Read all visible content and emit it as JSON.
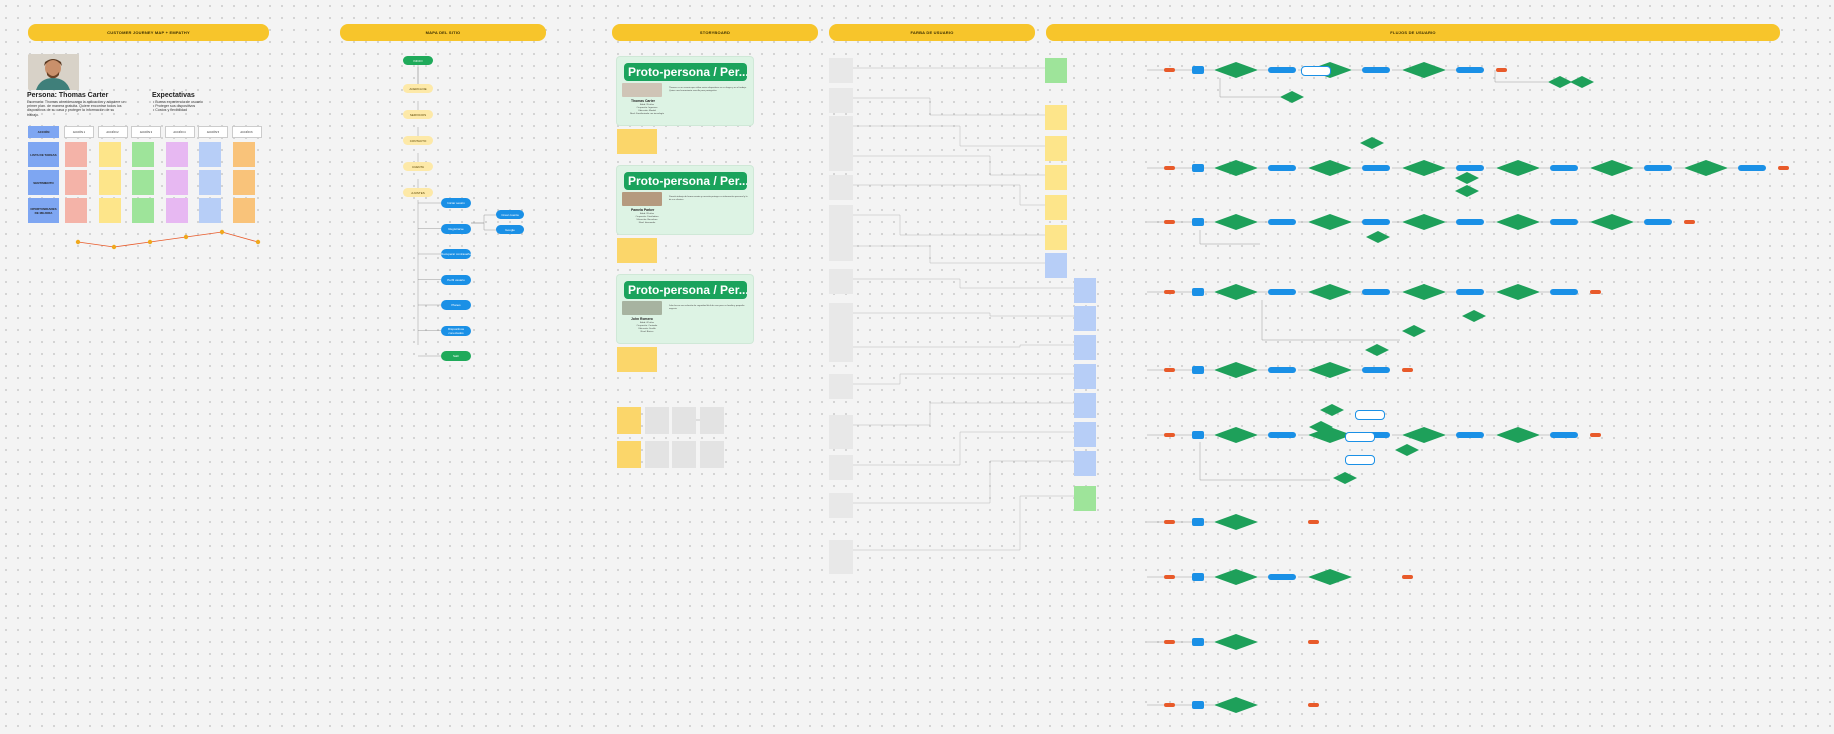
{
  "headers": {
    "journey": "CUSTOMER JOURNEY MAP + EMPATHY",
    "sitemap": "MAPA DEL SITIO",
    "storyboard": "STORYBOARD",
    "user_path": "FARBA DE USUARIO",
    "user_flow": "FLUJOS DE USUARIO"
  },
  "persona": {
    "title": "Persona: Thomas Carter",
    "description": "Escenario: Thomas abre/descarga la aplicación y adquiere un primer plan. de manera gratuita. Quiere encontrar todos los dispositivos de su casa y proteger la información de su trabajo.",
    "expectations_title": "Expectativas",
    "expectations": [
      "Buena experiencia de usuario",
      "Proteger sus dispositivos",
      "Costos y flexibilidad"
    ]
  },
  "journey_grid": {
    "corner": "ACCIÓN",
    "stages": [
      "ACCIÓN 1",
      "ACCIÓN 2",
      "ACCIÓN 3",
      "ACCIÓN 4",
      "ACCIÓN 5",
      "ACCIÓN 6"
    ],
    "rows": [
      "LISTA DE TAREAS",
      "SENTIMIENTO",
      "OPORTUNIDADES DE MEJORA"
    ],
    "colors": [
      "#f4b3a8",
      "#fde58a",
      "#9ee49a",
      "#e7b8f2",
      "#b7cef7",
      "#f9c37a"
    ],
    "row_color": "#7ea6f2",
    "emotion": [
      2,
      1,
      2,
      3,
      4,
      2
    ],
    "emotion_color": "#e85a2a",
    "dot_color": "#f0a81c"
  },
  "sitemap": {
    "root": "INICIO",
    "levels": [
      "ACERCA DE",
      "SERVICIOS",
      "CONTACTO",
      "CUENTA",
      "AJUSTES"
    ],
    "branches": [
      "Iniciar sesión",
      "Registrarse",
      "Recuperar contraseña",
      "Perfil usuario",
      "Planes",
      "Dispositivos conectados",
      "Salir"
    ],
    "sub": [
      "Crear cuenta",
      "Google"
    ]
  },
  "storyboard": {
    "banner": "Proto-persona / Per...",
    "personas": [
      {
        "name": "Thomas Carter",
        "lines": [
          "Edad: 35 años",
          "Ocupación: Ingeniero",
          "Ubicación: Madrid",
          "Nivel: Familiarizado con tecnología"
        ],
        "text": "Thomas es un usuario que utiliza varios dispositivos en su hogar y en el trabajo. Quiere una herramienta sencilla para protegerlos."
      },
      {
        "name": "Pamela Parker",
        "lines": [
          "Edad: 28 años",
          "Ocupación: Diseñadora",
          "Ubicación: Barcelona",
          "Nivel: Intermedio"
        ],
        "text": "Pamela trabaja de forma remota y necesita proteger su información personal y la de sus clientes."
      },
      {
        "name": "John Romero",
        "lines": [
          "Edad: 42 años",
          "Ocupación: Contador",
          "Ubicación: Sevilla",
          "Nivel: Básico"
        ],
        "text": "John busca una solución de seguridad fácil de usar para su familia y pequeño negocio."
      }
    ]
  },
  "user_flow": {
    "start_color": "#e85a2a",
    "box_color": "#1a90e6",
    "decision_color": "#1ea05a"
  }
}
